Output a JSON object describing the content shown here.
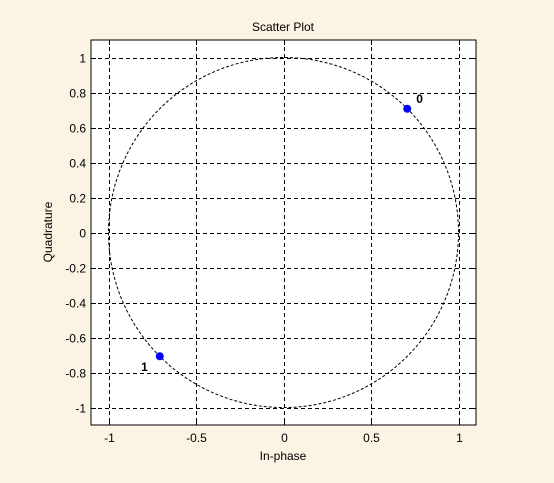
{
  "chart_data": {
    "type": "scatter",
    "title": "Scatter Plot",
    "xlabel": "In-phase",
    "ylabel": "Quadrature",
    "xlim": [
      -1.1,
      1.1
    ],
    "ylim": [
      -1.1,
      1.1
    ],
    "xticks": [
      -1,
      -0.5,
      0,
      0.5,
      1
    ],
    "xtick_labels": [
      "-1",
      "-0.5",
      "0",
      "0.5",
      "1"
    ],
    "yticks": [
      1,
      0.8,
      0.6,
      0.4,
      0.2,
      0,
      -0.2,
      -0.4,
      -0.6,
      -0.8,
      -1
    ],
    "ytick_labels": [
      "1",
      "0.8",
      "0.6",
      "0.4",
      "0.2",
      "0",
      "-0.2",
      "-0.4",
      "-0.6",
      "-0.8",
      "-1"
    ],
    "grid": true,
    "reference_circle": {
      "radius": 1,
      "style": "dashed"
    },
    "point_color": "#0000ff",
    "points": [
      {
        "label": "0",
        "x": 0.7071,
        "y": 0.7071
      },
      {
        "label": "1",
        "x": -0.7071,
        "y": -0.7071
      }
    ]
  },
  "colors": {
    "figure_background": "#fbf3e4",
    "axes_background": "#ffffff",
    "axes_edge": "#000000",
    "grid": "#000000"
  }
}
